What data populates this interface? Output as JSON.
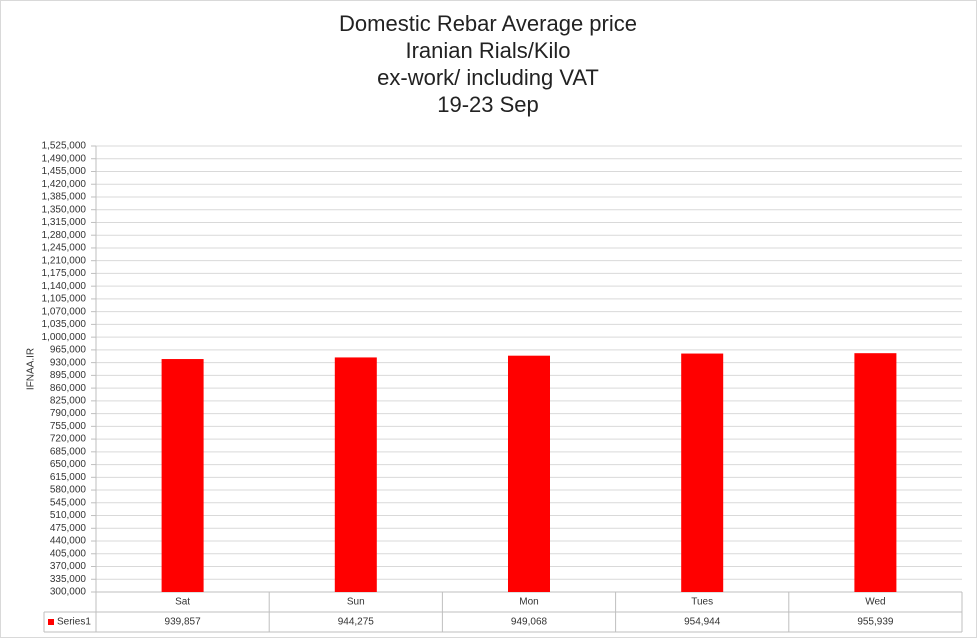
{
  "chart_data": {
    "type": "bar",
    "title_lines": [
      "Domestic Rebar Average price",
      "Iranian Rials/Kilo",
      "ex-work/ including VAT",
      "19-23 Sep"
    ],
    "y_label": "IFNAA.IR",
    "categories": [
      "Sat",
      "Sun",
      "Mon",
      "Tues",
      "Wed"
    ],
    "series": [
      {
        "name": "Series1",
        "color": "#ff0000",
        "values": [
          939857,
          944275,
          949068,
          954944,
          955939
        ],
        "value_labels": [
          "939,857",
          "944,275",
          "949,068",
          "954,944",
          "955,939"
        ]
      }
    ],
    "ylim": [
      300000,
      1525000
    ],
    "yticks": [
      {
        "value": 300000,
        "label": "300,000"
      },
      {
        "value": 335000,
        "label": "335,000"
      },
      {
        "value": 370000,
        "label": "370,000"
      },
      {
        "value": 405000,
        "label": "405,000"
      },
      {
        "value": 440000,
        "label": "440,000"
      },
      {
        "value": 475000,
        "label": "475,000"
      },
      {
        "value": 510000,
        "label": "510,000"
      },
      {
        "value": 545000,
        "label": "545,000"
      },
      {
        "value": 580000,
        "label": "580,000"
      },
      {
        "value": 615000,
        "label": "615,000"
      },
      {
        "value": 650000,
        "label": "650,000"
      },
      {
        "value": 685000,
        "label": "685,000"
      },
      {
        "value": 720000,
        "label": "720,000"
      },
      {
        "value": 755000,
        "label": "755,000"
      },
      {
        "value": 790000,
        "label": "790,000"
      },
      {
        "value": 825000,
        "label": "825,000"
      },
      {
        "value": 860000,
        "label": "860,000"
      },
      {
        "value": 895000,
        "label": "895,000"
      },
      {
        "value": 930000,
        "label": "930,000"
      },
      {
        "value": 965000,
        "label": "965,000"
      },
      {
        "value": 1000000,
        "label": "1,000,000"
      },
      {
        "value": 1035000,
        "label": "1,035,000"
      },
      {
        "value": 1070000,
        "label": "1,070,000"
      },
      {
        "value": 1105000,
        "label": "1,105,000"
      },
      {
        "value": 1140000,
        "label": "1,140,000"
      },
      {
        "value": 1175000,
        "label": "1,175,000"
      },
      {
        "value": 1210000,
        "label": "1,210,000"
      },
      {
        "value": 1245000,
        "label": "1,245,000"
      },
      {
        "value": 1280000,
        "label": "1,280,000"
      },
      {
        "value": 1315000,
        "label": "1,315,000"
      },
      {
        "value": 1350000,
        "label": "1,350,000"
      },
      {
        "value": 1385000,
        "label": "1,385,000"
      },
      {
        "value": 1420000,
        "label": "1,420,000"
      },
      {
        "value": 1455000,
        "label": "1,455,000"
      },
      {
        "value": 1490000,
        "label": "1,490,000"
      },
      {
        "value": 1525000,
        "label": "1,525,000"
      }
    ],
    "grid": true
  }
}
